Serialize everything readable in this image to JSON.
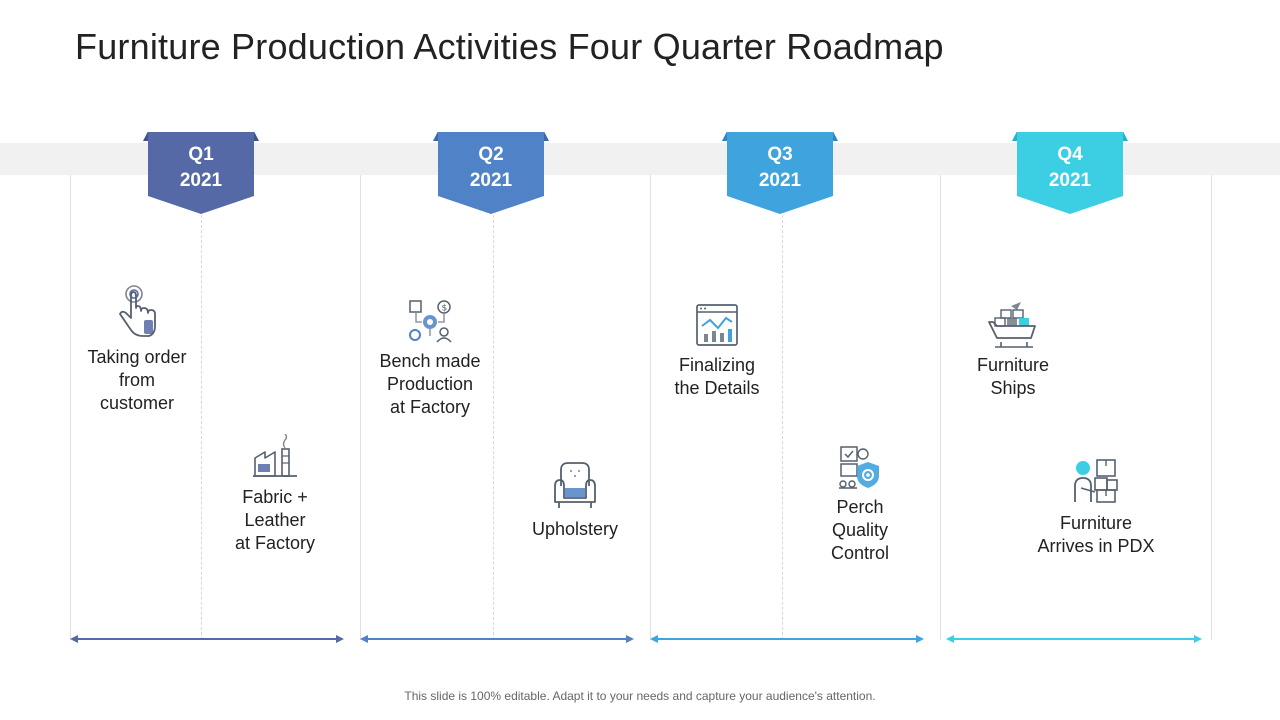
{
  "title": "Furniture Production Activities Four Quarter Roadmap",
  "footer": "This slide is 100% editable. Adapt it to your needs and capture your audience's attention.",
  "colors": {
    "q1": "#5469a6",
    "q2": "#4f82c6",
    "q3": "#3fa3de",
    "q4": "#3ccfe4",
    "band": "#f1f1f1"
  },
  "quarters": [
    {
      "quarter": "Q1",
      "year": "2021"
    },
    {
      "quarter": "Q2",
      "year": "2021"
    },
    {
      "quarter": "Q3",
      "year": "2021"
    },
    {
      "quarter": "Q4",
      "year": "2021"
    }
  ],
  "activities": {
    "taking_order": {
      "lines": [
        "Taking order",
        "from",
        "customer"
      ],
      "icon": "touch-hand-icon"
    },
    "fabric_leather": {
      "lines": [
        "Fabric +",
        "Leather",
        "at Factory"
      ],
      "icon": "factory-icon"
    },
    "bench_made": {
      "lines": [
        "Bench made",
        "Production",
        "at Factory"
      ],
      "icon": "production-process-icon"
    },
    "upholstery": {
      "lines": [
        "Upholstery"
      ],
      "icon": "armchair-icon"
    },
    "finalizing": {
      "lines": [
        "Finalizing",
        "the Details"
      ],
      "icon": "analytics-dashboard-icon"
    },
    "perch_quality": {
      "lines": [
        "Perch",
        "Quality",
        "Control"
      ],
      "icon": "quality-control-icon"
    },
    "furniture_ships": {
      "lines": [
        "Furniture",
        "Ships"
      ],
      "icon": "cargo-ship-icon"
    },
    "furniture_arrives": {
      "lines": [
        "Furniture",
        "Arrives in PDX"
      ],
      "icon": "delivery-person-icon"
    }
  }
}
